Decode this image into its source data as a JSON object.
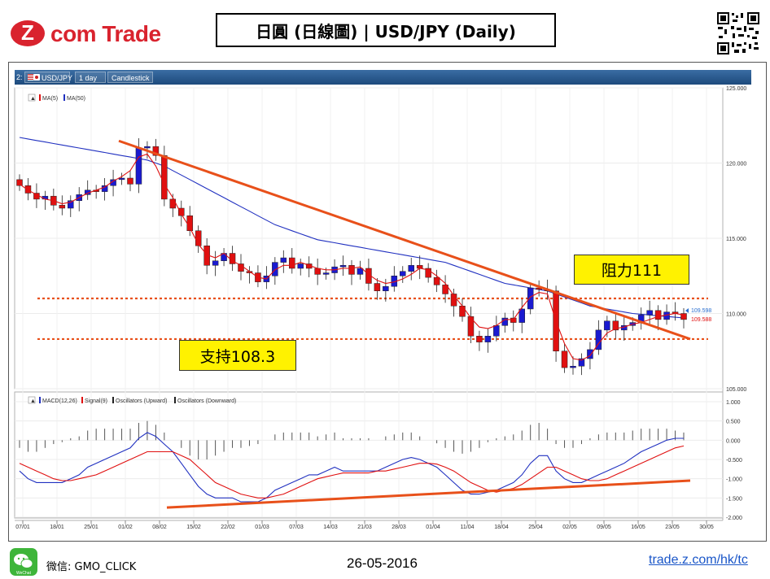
{
  "header": {
    "logo_text": "com Trade",
    "logo_z": "Z",
    "title": "日圓 (日線圖) | USD/JPY  (Daily)"
  },
  "toolbar": {
    "index_label": "2:",
    "symbol": "USD/JPY",
    "timeframe": "1 day",
    "chart_style": "Candlestick"
  },
  "price_panel": {
    "legend": [
      "MA(5)",
      "MA(50)"
    ],
    "price_labels": {
      "last_blue": "109.598",
      "last_red": "109.588"
    },
    "callouts": {
      "resistance": "阻力111",
      "support": "支持108.3"
    }
  },
  "macd_panel": {
    "legend": [
      "MACD(12,26)",
      "Signal(9)",
      "Oscillators (Upward)",
      "Oscillators (Downward)"
    ]
  },
  "footer": {
    "wechat_icon_label": "WeChat",
    "wechat": "微信: GMO_CLICK",
    "date": "26-05-2016",
    "link": "trade.z.com/hk/tc"
  },
  "colors": {
    "brand_red": "#d9232e",
    "bull_candle": "#1a1ad0",
    "bear_candle": "#e01010",
    "ma5": "#e01010",
    "ma50": "#2030c0",
    "trendline": "#e8501a",
    "callout": "#fff200"
  },
  "chart_data": [
    {
      "type": "candlestick",
      "ylim": [
        105,
        125
      ],
      "y_ticks": [
        "125.000",
        "120.000",
        "115.000",
        "110.000",
        "105.000"
      ],
      "x_ticks": [
        "07/01",
        "18/01",
        "25/01",
        "01/02",
        "08/02",
        "15/02",
        "22/02",
        "01/03",
        "07/03",
        "14/03",
        "21/03",
        "28/03",
        "01/04",
        "11/04",
        "18/04",
        "25/04",
        "02/05",
        "09/05",
        "16/05",
        "23/05",
        "30/05"
      ],
      "series": [
        {
          "name": "MA(5)",
          "values": [
            118.6,
            118.2,
            117.9,
            117.6,
            117.5,
            117.3,
            117.4,
            117.7,
            118.0,
            118.2,
            118.4,
            118.8,
            119.1,
            119.5,
            120.4,
            120.6,
            119.8,
            118.6,
            117.7,
            116.6,
            115.7,
            114.6,
            113.9,
            113.7,
            114.0,
            113.5,
            113.2,
            112.8,
            112.4,
            112.3,
            112.9,
            113.2,
            113.2,
            113.4,
            113.2,
            113.0,
            112.9,
            112.9,
            113.0,
            113.0,
            113.1,
            112.6,
            112.2,
            112.0,
            112.1,
            112.3,
            112.6,
            113.0,
            112.9,
            112.5,
            112.0,
            111.2,
            110.5,
            109.7,
            109.1,
            109.0,
            109.2,
            109.6,
            109.6,
            110.4,
            111.1,
            111.4,
            111.3,
            109.5,
            108.0,
            107.0,
            106.9,
            107.2,
            108.0,
            108.7,
            109.0,
            109.1,
            109.3,
            109.4,
            109.6,
            109.8,
            109.9,
            110.0,
            109.9
          ]
        },
        {
          "name": "MA(50)",
          "values": [
            121.7,
            121.6,
            121.5,
            121.4,
            121.3,
            121.2,
            121.1,
            121.0,
            120.9,
            120.8,
            120.7,
            120.6,
            120.5,
            120.4,
            120.3,
            120.2,
            120.0,
            119.8,
            119.5,
            119.2,
            118.9,
            118.6,
            118.3,
            118.0,
            117.7,
            117.4,
            117.1,
            116.8,
            116.5,
            116.2,
            115.9,
            115.7,
            115.5,
            115.3,
            115.1,
            114.9,
            114.8,
            114.7,
            114.6,
            114.5,
            114.4,
            114.3,
            114.2,
            114.1,
            114.0,
            113.9,
            113.8,
            113.7,
            113.6,
            113.5,
            113.4,
            113.2,
            113.0,
            112.8,
            112.6,
            112.4,
            112.2,
            112.0,
            111.9,
            111.8,
            111.7,
            111.6,
            111.5,
            111.3,
            111.1,
            110.9,
            110.7,
            110.5,
            110.4,
            110.3,
            110.2,
            110.1,
            110.0,
            109.95,
            109.9,
            109.85,
            109.8,
            109.75,
            109.7
          ]
        }
      ],
      "candles_close": [
        118.5,
        118.0,
        117.6,
        117.8,
        117.2,
        117.0,
        117.5,
        117.9,
        118.2,
        118.1,
        118.5,
        118.9,
        119.0,
        118.6,
        121.0,
        121.1,
        120.5,
        117.6,
        117.0,
        116.5,
        115.5,
        114.5,
        113.2,
        113.5,
        114.0,
        113.3,
        112.8,
        112.7,
        112.1,
        112.5,
        113.4,
        113.7,
        113.0,
        113.3,
        113.0,
        112.6,
        112.7,
        113.1,
        113.2,
        112.6,
        113.0,
        112.0,
        111.5,
        111.8,
        112.5,
        112.8,
        113.2,
        113.0,
        112.4,
        111.9,
        111.3,
        110.5,
        109.8,
        108.5,
        108.1,
        108.5,
        109.2,
        109.7,
        109.4,
        110.3,
        111.7,
        111.6,
        111.5,
        107.5,
        106.4,
        106.5,
        107.0,
        107.6,
        108.9,
        109.5,
        108.9,
        109.2,
        109.4,
        109.9,
        110.2,
        109.6,
        110.1,
        110.0,
        109.6
      ],
      "hlines": [
        111,
        108.3
      ],
      "trendline": {
        "from": [
          121.5
        ],
        "to": [
          108.3
        ]
      }
    },
    {
      "type": "bar",
      "ylim": [
        -2.0,
        1.0
      ],
      "y_ticks": [
        "1.000",
        "0.500",
        "0.000",
        "-0.500",
        "-1.000",
        "-1.500",
        "-2.000"
      ],
      "series": [
        {
          "name": "MACD(12,26)",
          "values": [
            -0.8,
            -1.0,
            -1.1,
            -1.1,
            -1.1,
            -1.1,
            -1.0,
            -0.9,
            -0.7,
            -0.6,
            -0.5,
            -0.4,
            -0.3,
            -0.2,
            0.05,
            0.2,
            0.1,
            -0.1,
            -0.3,
            -0.6,
            -0.9,
            -1.2,
            -1.4,
            -1.5,
            -1.5,
            -1.5,
            -1.6,
            -1.6,
            -1.6,
            -1.5,
            -1.3,
            -1.2,
            -1.1,
            -1.0,
            -0.9,
            -0.9,
            -0.8,
            -0.7,
            -0.8,
            -0.8,
            -0.8,
            -0.8,
            -0.8,
            -0.7,
            -0.6,
            -0.5,
            -0.45,
            -0.5,
            -0.6,
            -0.7,
            -0.9,
            -1.1,
            -1.3,
            -1.4,
            -1.4,
            -1.35,
            -1.3,
            -1.2,
            -1.1,
            -0.9,
            -0.6,
            -0.4,
            -0.4,
            -0.8,
            -1.0,
            -1.1,
            -1.1,
            -1.0,
            -0.9,
            -0.8,
            -0.7,
            -0.6,
            -0.45,
            -0.3,
            -0.2,
            -0.1,
            0.0,
            0.05,
            0.05
          ]
        },
        {
          "name": "Signal(9)",
          "values": [
            -0.6,
            -0.7,
            -0.8,
            -0.9,
            -1.0,
            -1.05,
            -1.05,
            -1.0,
            -0.95,
            -0.9,
            -0.8,
            -0.7,
            -0.6,
            -0.5,
            -0.4,
            -0.3,
            -0.3,
            -0.3,
            -0.3,
            -0.4,
            -0.5,
            -0.7,
            -0.9,
            -1.1,
            -1.2,
            -1.3,
            -1.4,
            -1.45,
            -1.5,
            -1.5,
            -1.45,
            -1.4,
            -1.3,
            -1.2,
            -1.1,
            -1.0,
            -0.95,
            -0.9,
            -0.85,
            -0.85,
            -0.85,
            -0.85,
            -0.8,
            -0.8,
            -0.75,
            -0.7,
            -0.65,
            -0.6,
            -0.6,
            -0.62,
            -0.7,
            -0.8,
            -0.95,
            -1.1,
            -1.2,
            -1.3,
            -1.35,
            -1.3,
            -1.25,
            -1.15,
            -1.0,
            -0.85,
            -0.7,
            -0.7,
            -0.8,
            -0.9,
            -1.0,
            -1.05,
            -1.05,
            -1.0,
            -0.9,
            -0.8,
            -0.7,
            -0.6,
            -0.5,
            -0.4,
            -0.3,
            -0.2,
            -0.15
          ]
        }
      ]
    }
  ]
}
